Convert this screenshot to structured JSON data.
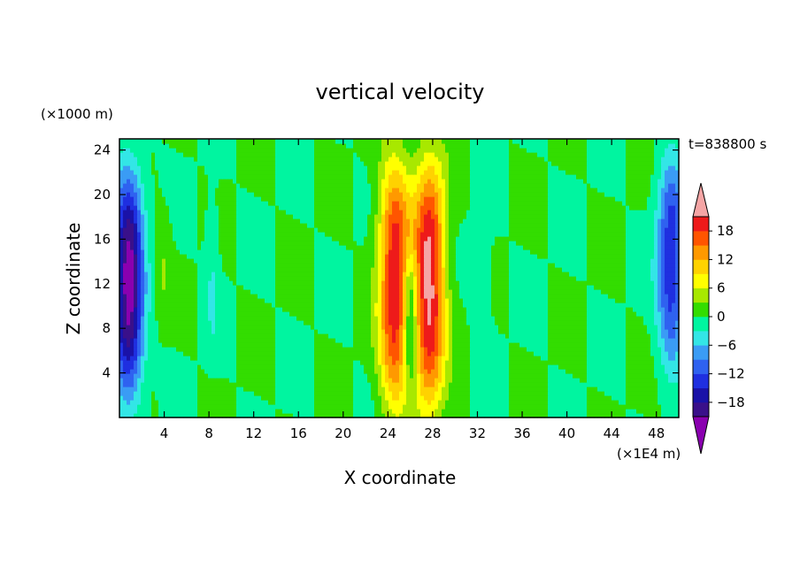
{
  "chart_data": {
    "type": "heatmap",
    "title": "vertical velocity",
    "xlabel": "X coordinate",
    "ylabel": "Z coordinate",
    "x_unit": "(×1E4 m)",
    "y_unit": "(×1000 m)",
    "time_label": "t=838800 s",
    "xlim": [
      0,
      50
    ],
    "ylim": [
      0,
      25
    ],
    "x_ticks": [
      4,
      8,
      12,
      16,
      20,
      24,
      28,
      32,
      36,
      40,
      44,
      48
    ],
    "y_ticks": [
      4,
      8,
      12,
      16,
      20,
      24
    ],
    "colorbar": {
      "levels": [
        -21,
        -18,
        -15,
        -12,
        -9,
        -6,
        -3,
        0,
        3,
        6,
        9,
        12,
        15,
        18,
        21
      ],
      "tick_labels": [
        -18,
        -12,
        -6,
        0,
        6,
        12,
        18
      ],
      "colors": [
        "#3a108a",
        "#1a12a8",
        "#1f2fe0",
        "#2f62f0",
        "#3a9cf5",
        "#33e6e6",
        "#00f5a0",
        "#33dd00",
        "#a8e800",
        "#ffff00",
        "#ffd200",
        "#ff9900",
        "#ff5500",
        "#ee1a1a"
      ],
      "under_color": "#8a00b0",
      "over_color": "#f5a5a5"
    },
    "background_value": 0,
    "features": [
      {
        "kind": "downdraft",
        "x_center": 0.8,
        "z_center": 12,
        "x_half_width": 1.3,
        "z_half_height": 10,
        "peak": -22
      },
      {
        "kind": "updraft",
        "x_center": 24.6,
        "z_center": 12,
        "x_half_width": 1.4,
        "z_half_height": 11,
        "peak": 20
      },
      {
        "kind": "downdraft",
        "x_center": 26.0,
        "z_center": 9,
        "x_half_width": 0.6,
        "z_half_height": 6,
        "peak": -10
      },
      {
        "kind": "updraft",
        "x_center": 27.7,
        "z_center": 12,
        "x_half_width": 1.4,
        "z_half_height": 11,
        "peak": 22
      },
      {
        "kind": "updraft",
        "x_center": 3.8,
        "z_center": 14,
        "x_half_width": 0.7,
        "z_half_height": 5,
        "peak": 3
      },
      {
        "kind": "downdraft",
        "x_center": 49.3,
        "z_center": 14,
        "x_half_width": 1.2,
        "z_half_height": 9,
        "peak": -14
      },
      {
        "kind": "downdraft",
        "x_center": 8.3,
        "z_center": 13,
        "x_half_width": 0.6,
        "z_half_height": 7,
        "peak": -3
      },
      {
        "kind": "downdraft",
        "x_center": 32.5,
        "z_center": 12,
        "x_half_width": 0.8,
        "z_half_height": 8,
        "peak": -2
      }
    ],
    "grid": false
  }
}
